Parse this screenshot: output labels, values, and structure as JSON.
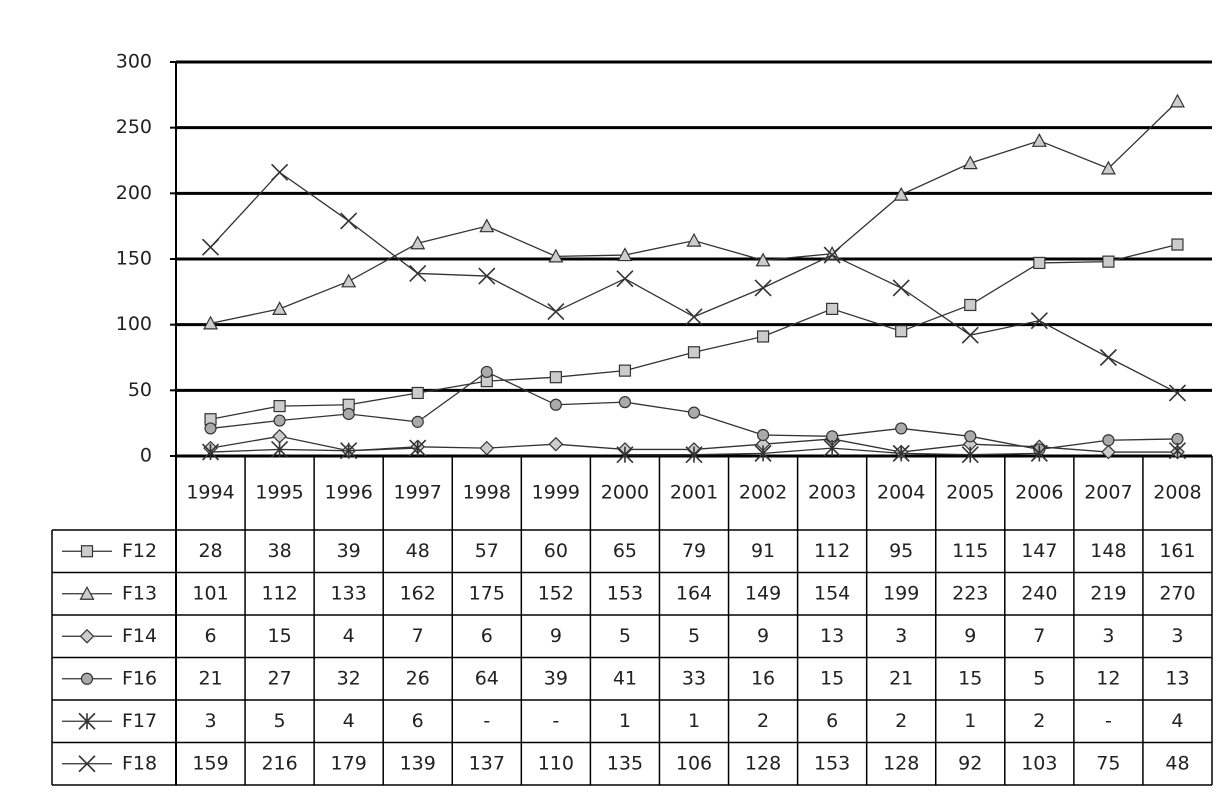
{
  "chart_data": {
    "type": "line",
    "categories": [
      "1994",
      "1995",
      "1996",
      "1997",
      "1998",
      "1999",
      "2000",
      "2001",
      "2002",
      "2003",
      "2004",
      "2005",
      "2006",
      "2007",
      "2008"
    ],
    "series": [
      {
        "name": "F12",
        "color": "#333333",
        "marker": "square",
        "values": [
          28,
          38,
          39,
          48,
          57,
          60,
          65,
          79,
          91,
          112,
          95,
          115,
          147,
          148,
          161
        ]
      },
      {
        "name": "F13",
        "color": "#333333",
        "marker": "triangle",
        "values": [
          101,
          112,
          133,
          162,
          175,
          152,
          153,
          164,
          149,
          154,
          199,
          223,
          240,
          219,
          270
        ]
      },
      {
        "name": "F14",
        "color": "#333333",
        "marker": "diamond",
        "values": [
          6,
          15,
          4,
          7,
          6,
          9,
          5,
          5,
          9,
          13,
          3,
          9,
          7,
          3,
          3
        ]
      },
      {
        "name": "F16",
        "color": "#333333",
        "marker": "circle",
        "values": [
          21,
          27,
          32,
          26,
          64,
          39,
          41,
          33,
          16,
          15,
          21,
          15,
          5,
          12,
          13
        ]
      },
      {
        "name": "F17",
        "color": "#333333",
        "marker": "asterisk",
        "values": [
          3,
          5,
          4,
          6,
          null,
          null,
          1,
          1,
          2,
          6,
          2,
          1,
          2,
          null,
          4
        ],
        "value_labels": [
          "3",
          "5",
          "4",
          "6",
          "-",
          "-",
          "1",
          "1",
          "2",
          "6",
          "2",
          "1",
          "2",
          "-",
          "4"
        ]
      },
      {
        "name": "F18",
        "color": "#333333",
        "marker": "x",
        "values": [
          159,
          216,
          179,
          139,
          137,
          110,
          135,
          106,
          128,
          153,
          128,
          92,
          103,
          75,
          48
        ]
      }
    ],
    "ylim": [
      0,
      300
    ],
    "yticks": [
      0,
      50,
      100,
      150,
      200,
      250,
      300
    ],
    "grid": true
  }
}
